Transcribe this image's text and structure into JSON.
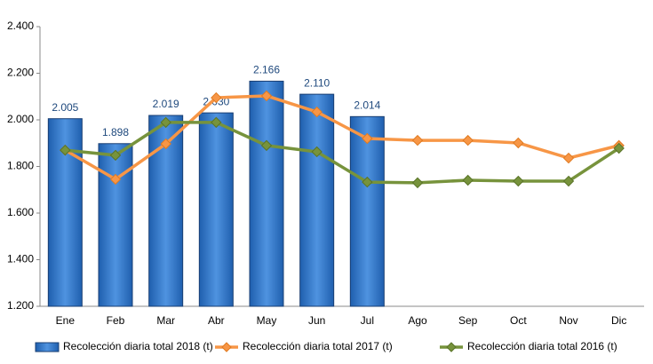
{
  "chart_data": {
    "type": "combo",
    "categories": [
      "Ene",
      "Feb",
      "Mar",
      "Abr",
      "May",
      "Jun",
      "Jul",
      "Ago",
      "Sep",
      "Oct",
      "Nov",
      "Dic"
    ],
    "series": [
      {
        "name": "Recolección diaria total 2018 (t)",
        "type": "bar",
        "color": "#3a7dcc",
        "values": [
          2005,
          1898,
          2019,
          2030,
          2166,
          2110,
          2014,
          null,
          null,
          null,
          null,
          null
        ],
        "value_labels": [
          "2.005",
          "1.898",
          "2.019",
          "2.030",
          "2.166",
          "2.110",
          "2.014",
          null,
          null,
          null,
          null,
          null
        ]
      },
      {
        "name": "Recolección diaria total 2017 (t)",
        "type": "line",
        "color": "#f79646",
        "values": [
          1870,
          1745,
          1897,
          2095,
          2103,
          2034,
          1920,
          1912,
          1912,
          1901,
          1836,
          1890
        ]
      },
      {
        "name": "Recolección diaria total 2016 (t)",
        "type": "line",
        "color": "#77933c",
        "values": [
          1870,
          1848,
          1989,
          1989,
          1890,
          1863,
          1733,
          1730,
          1741,
          1737,
          1737,
          1878
        ]
      }
    ],
    "ylim": [
      1200,
      2400
    ],
    "yticks": [
      {
        "value": 1200,
        "label": "1.200"
      },
      {
        "value": 1400,
        "label": "1.400"
      },
      {
        "value": 1600,
        "label": "1.600"
      },
      {
        "value": 1800,
        "label": "1.800"
      },
      {
        "value": 2000,
        "label": "2.000"
      },
      {
        "value": 2200,
        "label": "2.200"
      },
      {
        "value": 2400,
        "label": "2.400"
      }
    ],
    "grid": false,
    "legend": "bottom"
  }
}
